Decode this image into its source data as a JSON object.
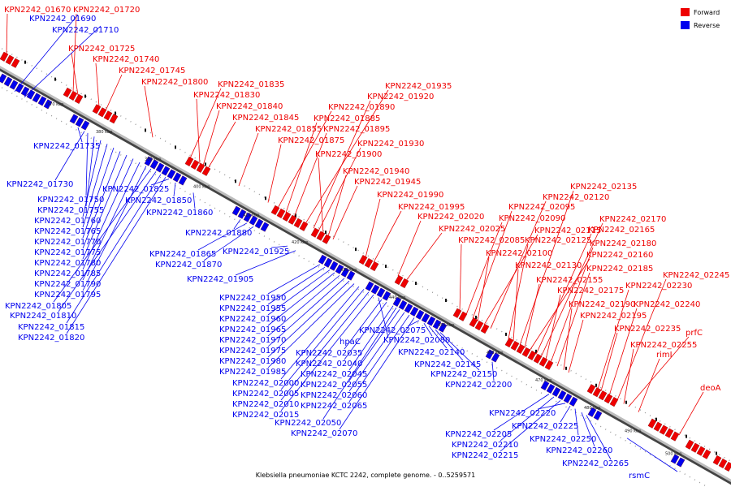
{
  "caption": "Klebsiella pneumoniae KCTC 2242, complete genome. - 0..5259571",
  "legend": [
    {
      "label": "Forward",
      "color": "#ee0000"
    },
    {
      "label": "Reverse",
      "color": "#0000ee"
    }
  ],
  "ticks": [
    "370 kbp",
    "380 kbp",
    "390 kbp",
    "400 kbp",
    "410 kbp",
    "420 kbp",
    "430 kbp",
    "440 kbp",
    "450 kbp",
    "460 kbp",
    "470 kbp",
    "480 kbp",
    "490 kbp",
    "500 kbp"
  ],
  "forward_genes": [
    "KPN2242_01670",
    "KPN2242_01720",
    "KPN2242_01725",
    "KPN2242_01740",
    "KPN2242_01745",
    "KPN2242_01800",
    "KPN2242_01835",
    "KPN2242_01830",
    "KPN2242_01840",
    "KPN2242_01845",
    "KPN2242_01855",
    "KPN2242_01875",
    "KPN2242_01890",
    "KPN2242_01885",
    "KPN2242_01895",
    "KPN2242_01935",
    "KPN2242_01920",
    "KPN2242_01930",
    "KPN2242_01900",
    "KPN2242_01940",
    "KPN2242_01945",
    "KPN2242_01990",
    "KPN2242_01995",
    "KPN2242_02020",
    "KPN2242_02025",
    "KPN2242_02085",
    "KPN2242_02090",
    "KPN2242_02095",
    "KPN2242_02100",
    "KPN2242_02115",
    "KPN2242_02120",
    "KPN2242_02125",
    "KPN2242_02130",
    "KPN2242_02135",
    "KPN2242_02155",
    "KPN2242_02160",
    "KPN2242_02165",
    "KPN2242_02170",
    "KPN2242_02175",
    "KPN2242_02180",
    "KPN2242_02185",
    "KPN2242_02190",
    "KPN2242_02195",
    "KPN2242_02230",
    "KPN2242_02235",
    "KPN2242_02240",
    "KPN2242_02245",
    "KPN2242_02255",
    "prfC",
    "rimI",
    "deoA"
  ],
  "reverse_genes": [
    "KPN2242_01690",
    "KPN2242_01710",
    "KPN2242_01735",
    "KPN2242_01730",
    "KPN2242_01750",
    "KPN2242_01755",
    "KPN2242_01760",
    "KPN2242_01765",
    "KPN2242_01770",
    "KPN2242_01775",
    "KPN2242_01780",
    "KPN2242_01785",
    "KPN2242_01790",
    "KPN2242_01795",
    "KPN2242_01805",
    "KPN2242_01810",
    "KPN2242_01815",
    "KPN2242_01820",
    "KPN2242_01825",
    "KPN2242_01850",
    "KPN2242_01860",
    "KPN2242_01880",
    "KPN2242_01865",
    "KPN2242_01870",
    "KPN2242_01925",
    "KPN2242_01905",
    "KPN2242_01950",
    "KPN2242_01955",
    "KPN2242_01960",
    "KPN2242_01965",
    "KPN2242_01970",
    "KPN2242_01975",
    "KPN2242_01980",
    "KPN2242_01985",
    "KPN2242_02000",
    "KPN2242_02005",
    "KPN2242_02010",
    "KPN2242_02015",
    "hpaC",
    "KPN2242_02035",
    "KPN2242_02040",
    "KPN2242_02045",
    "KPN2242_02050",
    "KPN2242_02055",
    "KPN2242_02060",
    "KPN2242_02065",
    "KPN2242_02070",
    "KPN2242_02075",
    "KPN2242_02080",
    "KPN2242_02140",
    "KPN2242_02145",
    "KPN2242_02150",
    "KPN2242_02200",
    "KPN2242_02205",
    "KPN2242_02210",
    "KPN2242_02215",
    "KPN2242_02220",
    "KPN2242_02225",
    "KPN2242_02250",
    "KPN2242_02260",
    "KPN2242_02265",
    "rsmC"
  ]
}
